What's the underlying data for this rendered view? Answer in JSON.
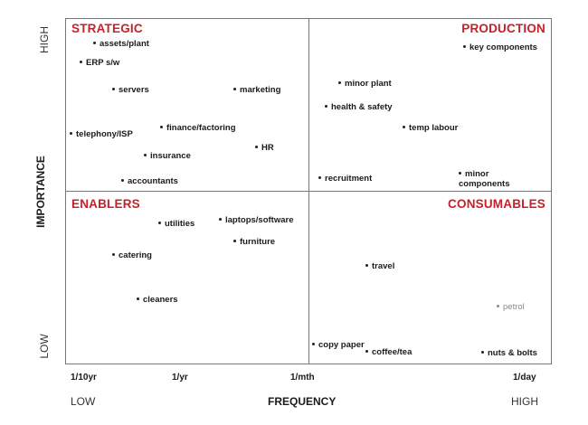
{
  "quadrants": {
    "top_left": "STRATEGIC",
    "top_right": "PRODUCTION",
    "bottom_left": "ENABLERS",
    "bottom_right": "CONSUMABLES"
  },
  "items": {
    "strategic": [
      "assets/plant",
      "ERP s/w",
      "servers",
      "marketing",
      "telephony/ISP",
      "finance/factoring",
      "insurance",
      "HR",
      "accountants"
    ],
    "production": [
      "key components",
      "minor plant",
      "health & safety",
      "temp labour",
      "recruitment",
      "minor components"
    ],
    "enablers": [
      "utilities",
      "laptops/software",
      "furniture",
      "catering",
      "cleaners"
    ],
    "consumables": [
      "travel",
      "petrol",
      "copy paper",
      "coffee/tea",
      "nuts & bolts"
    ]
  },
  "x_axis": {
    "ticks": [
      "1/10yr",
      "1/yr",
      "1/mth",
      "1/day"
    ],
    "low": "LOW",
    "high": "HIGH",
    "title": "FREQUENCY"
  },
  "y_axis": {
    "high": "HIGH",
    "low": "LOW",
    "title": "IMPORTANCE"
  }
}
